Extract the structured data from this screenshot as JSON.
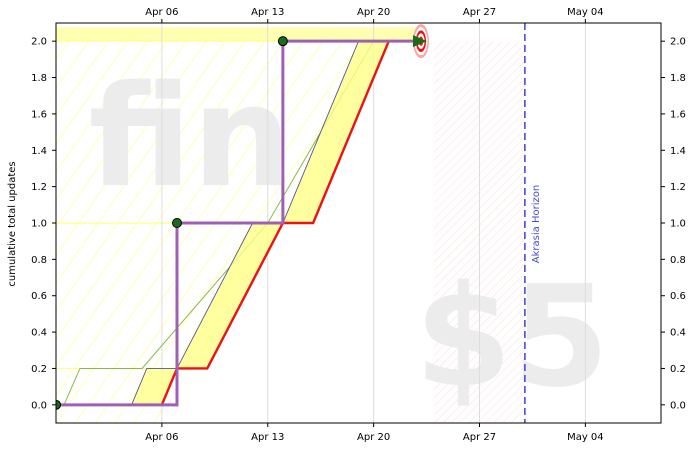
{
  "chart_data": {
    "type": "line",
    "title": "",
    "ylabel": "cumulative total updates",
    "xlabel": "",
    "x_range": [
      "2024-03-30",
      "2024-05-09"
    ],
    "ylim": [
      -0.1,
      2.1
    ],
    "x_ticks": [
      {
        "date": "2024-04-06",
        "label": "Apr 06"
      },
      {
        "date": "2024-04-13",
        "label": "Apr 13"
      },
      {
        "date": "2024-04-20",
        "label": "Apr 20"
      },
      {
        "date": "2024-04-27",
        "label": "Apr 27"
      },
      {
        "date": "2024-05-04",
        "label": "May 04"
      }
    ],
    "y_ticks": [
      "0.0",
      "0.2",
      "0.4",
      "0.6",
      "0.8",
      "1.0",
      "1.2",
      "1.4",
      "1.6",
      "1.8",
      "2.0"
    ],
    "watermarks": {
      "top": "fin",
      "bottom": "$5"
    },
    "horizon": {
      "date": "2024-04-30",
      "label": "Akrasia Horizon"
    },
    "datapoints": [
      {
        "date": "2024-03-30",
        "value": 0
      },
      {
        "date": "2024-04-07",
        "value": 1
      },
      {
        "date": "2024-04-14",
        "value": 2
      },
      {
        "date": "2024-04-23",
        "value": 2
      }
    ],
    "bright_red_line": [
      {
        "date": "2024-04-06",
        "value": 0
      },
      {
        "date": "2024-04-07",
        "value": 0.2
      },
      {
        "date": "2024-04-09",
        "value": 0.2
      },
      {
        "date": "2024-04-14",
        "value": 1
      },
      {
        "date": "2024-04-16",
        "value": 1
      },
      {
        "date": "2024-04-21",
        "value": 2
      }
    ],
    "goal_date": "2024-04-23",
    "goal_value": 2,
    "colors": {
      "steps": "#a15fb3",
      "red": "#ee1111",
      "yellow": "#ffff88",
      "dot": "#1a6b1a",
      "horizon": "#4a4ad8",
      "green_line": "#88bb44"
    }
  }
}
